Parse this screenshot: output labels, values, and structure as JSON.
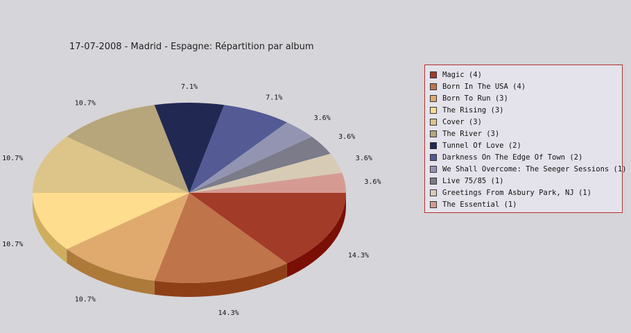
{
  "chart_data": {
    "type": "pie",
    "title": "17-07-2008 - Madrid - Espagne:  Répartition par album",
    "slices": [
      {
        "label": "Magic (4)",
        "value": 4,
        "percent_label": "14.3%",
        "color": "#a23b28",
        "side_color": "#7a0f06"
      },
      {
        "label": "Born In The USA (4)",
        "value": 4,
        "percent_label": "14.3%",
        "color": "#c0744a",
        "side_color": "#8f3f16"
      },
      {
        "label": "Born To Run (3)",
        "value": 3,
        "percent_label": "10.7%",
        "color": "#e0aa6e",
        "side_color": "#ad7a3a"
      },
      {
        "label": "The Rising (3)",
        "value": 3,
        "percent_label": "10.7%",
        "color": "#fedd8e",
        "side_color": "#ceae5e"
      },
      {
        "label": "Cover (3)",
        "value": 3,
        "percent_label": "10.7%",
        "color": "#ddc488",
        "side_color": "#ad9458"
      },
      {
        "label": "The River (3)",
        "value": 3,
        "percent_label": "10.7%",
        "color": "#b7a57b",
        "side_color": "#87754b"
      },
      {
        "label": "Tunnel Of Love (2)",
        "value": 2,
        "percent_label": "7.1%",
        "color": "#212953",
        "side_color": "#111533"
      },
      {
        "label": "Darkness On The Edge Of Town (2)",
        "value": 2,
        "percent_label": "7.1%",
        "color": "#545a94",
        "side_color": "#343a64"
      },
      {
        "label": "We Shall Overcome: The Seeger Sessions (1)",
        "value": 1,
        "percent_label": "3.6%",
        "color": "#9294b2",
        "side_color": "#626482"
      },
      {
        "label": "Live 75/85 (1)",
        "value": 1,
        "percent_label": "3.6%",
        "color": "#7b7b89",
        "side_color": "#4b4b59"
      },
      {
        "label": "Greetings From Asbury Park, NJ (1)",
        "value": 1,
        "percent_label": "3.6%",
        "color": "#d8cbb5",
        "side_color": "#a89b85"
      },
      {
        "label": "The Essential (1)",
        "value": 1,
        "percent_label": "3.6%",
        "color": "#d59b93",
        "side_color": "#a56b63"
      }
    ],
    "legend_position": "right"
  }
}
